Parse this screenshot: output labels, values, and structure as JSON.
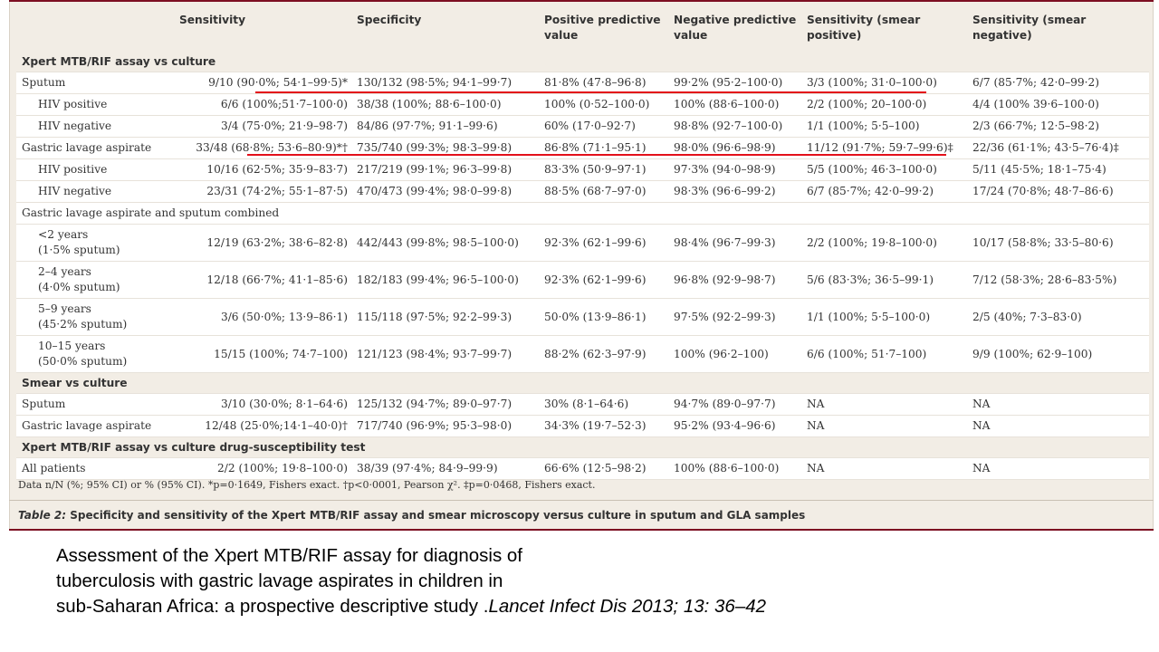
{
  "table": {
    "columns": [
      "",
      "Sensitivity",
      "Specificity",
      "Positive predictive value",
      "Negative predictive value",
      "Sensitivity (smear positive)",
      "Sensitivity (smear negative)"
    ],
    "rows": [
      {
        "type": "section",
        "label": "Xpert MTB/RIF assay vs culture"
      },
      {
        "type": "row",
        "label": "Sputum",
        "cells": [
          "9/10 (90·0%; 54·1–99·5)*",
          "130/132 (98·5%; 94·1–99·7)",
          "81·8% (47·8–96·8)",
          "99·2% (95·2–100·0)",
          "3/3 (100%; 31·0–100·0)",
          "6/7 (85·7%; 42·0–99·2)"
        ]
      },
      {
        "type": "sub",
        "label": "HIV positive",
        "cells": [
          "6/6 (100%;51·7–100·0)",
          "38/38 (100%; 88·6–100·0)",
          "100% (0·52–100·0)",
          "100% (88·6–100·0)",
          "2/2 (100%; 20–100·0)",
          "4/4 (100% 39·6–100·0)"
        ]
      },
      {
        "type": "sub",
        "label": "HIV negative",
        "cells": [
          "3/4 (75·0%; 21·9–98·7)",
          "84/86 (97·7%; 91·1–99·6)",
          "60% (17·0–92·7)",
          "98·8% (92·7–100·0)",
          "1/1 (100%; 5·5–100)",
          "2/3 (66·7%; 12·5–98·2)"
        ]
      },
      {
        "type": "row",
        "label": "Gastric lavage aspirate",
        "cells": [
          "33/48 (68·8%; 53·6–80·9)*†",
          "735/740 (99·3%; 98·3–99·8)",
          "86·8% (71·1–95·1)",
          "98·0% (96·6–98·9)",
          "11/12 (91·7%; 59·7–99·6)‡",
          "22/36 (61·1%; 43·5–76·4)‡"
        ]
      },
      {
        "type": "sub",
        "label": "HIV positive",
        "cells": [
          "10/16 (62·5%; 35·9–83·7)",
          "217/219 (99·1%; 96·3–99·8)",
          "83·3% (50·9–97·1)",
          "97·3% (94·0–98·9)",
          "5/5 (100%; 46·3–100·0)",
          "5/11 (45·5%; 18·1–75·4)"
        ]
      },
      {
        "type": "sub",
        "label": "HIV negative",
        "cells": [
          "23/31 (74·2%; 55·1–87·5)",
          "470/473 (99·4%; 98·0–99·8)",
          "88·5% (68·7–97·0)",
          "98·3% (96·6–99·2)",
          "6/7 (85·7%; 42·0–99·2)",
          "17/24 (70·8%; 48·7–86·6)"
        ]
      },
      {
        "type": "plain",
        "label": "Gastric lavage aspirate and sputum combined"
      },
      {
        "type": "tall",
        "label": "<2 years",
        "sublabel": "(1·5% sputum)",
        "cells": [
          "12/19 (63·2%; 38·6–82·8)",
          "442/443 (99·8%; 98·5–100·0)",
          "92·3% (62·1–99·6)",
          "98·4% (96·7–99·3)",
          "2/2 (100%; 19·8–100·0)",
          "10/17 (58·8%; 33·5–80·6)"
        ]
      },
      {
        "type": "tall",
        "label": "2–4 years",
        "sublabel": "(4·0% sputum)",
        "cells": [
          "12/18 (66·7%; 41·1–85·6)",
          "182/183 (99·4%; 96·5–100·0)",
          "92·3% (62·1–99·6)",
          "96·8% (92·9–98·7)",
          "5/6 (83·3%; 36·5–99·1)",
          "7/12 (58·3%; 28·6–83·5%)"
        ]
      },
      {
        "type": "tall",
        "label": "5–9 years",
        "sublabel": "(45·2% sputum)",
        "cells": [
          "3/6 (50·0%; 13·9–86·1)",
          "115/118 (97·5%; 92·2–99·3)",
          "50·0% (13·9–86·1)",
          "97·5% (92·2–99·3)",
          "1/1 (100%; 5·5–100·0)",
          "2/5 (40%; 7·3–83·0)"
        ]
      },
      {
        "type": "tall",
        "label": "10–15 years",
        "sublabel": "(50·0% sputum)",
        "cells": [
          "15/15 (100%; 74·7–100)",
          "121/123 (98·4%; 93·7–99·7)",
          "88·2% (62·3–97·9)",
          "100% (96·2–100)",
          "6/6 (100%; 51·7–100)",
          "9/9 (100%; 62·9–100)"
        ]
      },
      {
        "type": "section",
        "label": "Smear vs culture"
      },
      {
        "type": "row",
        "label": "Sputum",
        "cells": [
          "3/10 (30·0%; 8·1–64·6)",
          "125/132 (94·7%; 89·0–97·7)",
          "30% (8·1–64·6)",
          "94·7% (89·0–97·7)",
          "NA",
          "NA"
        ]
      },
      {
        "type": "row",
        "label": "Gastric lavage aspirate",
        "cells": [
          "12/48 (25·0%;14·1–40·0)†",
          "717/740 (96·9%; 95·3–98·0)",
          "34·3% (19·7–52·3)",
          "95·2% (93·4–96·6)",
          "NA",
          "NA"
        ]
      },
      {
        "type": "section",
        "label": "Xpert MTB/RIF assay vs culture drug-susceptibility test"
      },
      {
        "type": "row",
        "label": "All patients",
        "cells": [
          "2/2 (100%; 19·8–100·0)",
          "38/39 (97·4%; 84·9–99·9)",
          "66·6% (12·5–98·2)",
          "100% (88·6–100·0)",
          "NA",
          "NA"
        ]
      }
    ],
    "footnote": "Data n/N (%; 95% CI) or % (95% CI). *p=0·1649, Fishers exact. †p<0·0001, Pearson χ². ‡p=0·0468, Fishers exact.",
    "caption_label": "Table 2:",
    "caption_text": " Specificity and sensitivity of the Xpert MTB/RIF assay and smear microscopy versus culture in sputum and GLA samples"
  },
  "citation": {
    "line1": "Assessment of the Xpert MTB/RIF assay for diagnosis of",
    "line2": "tuberculosis  with gastric lavage aspirates in children in",
    "line3": "sub-Saharan Africa: a prospective descriptive study .",
    "journal": "Lancet Infect Dis 2013; 13: 36–42"
  },
  "colors": {
    "table_background": "#f2ede5",
    "header_rule": "#7d0e22",
    "highlight_underline": "#e3101a"
  }
}
